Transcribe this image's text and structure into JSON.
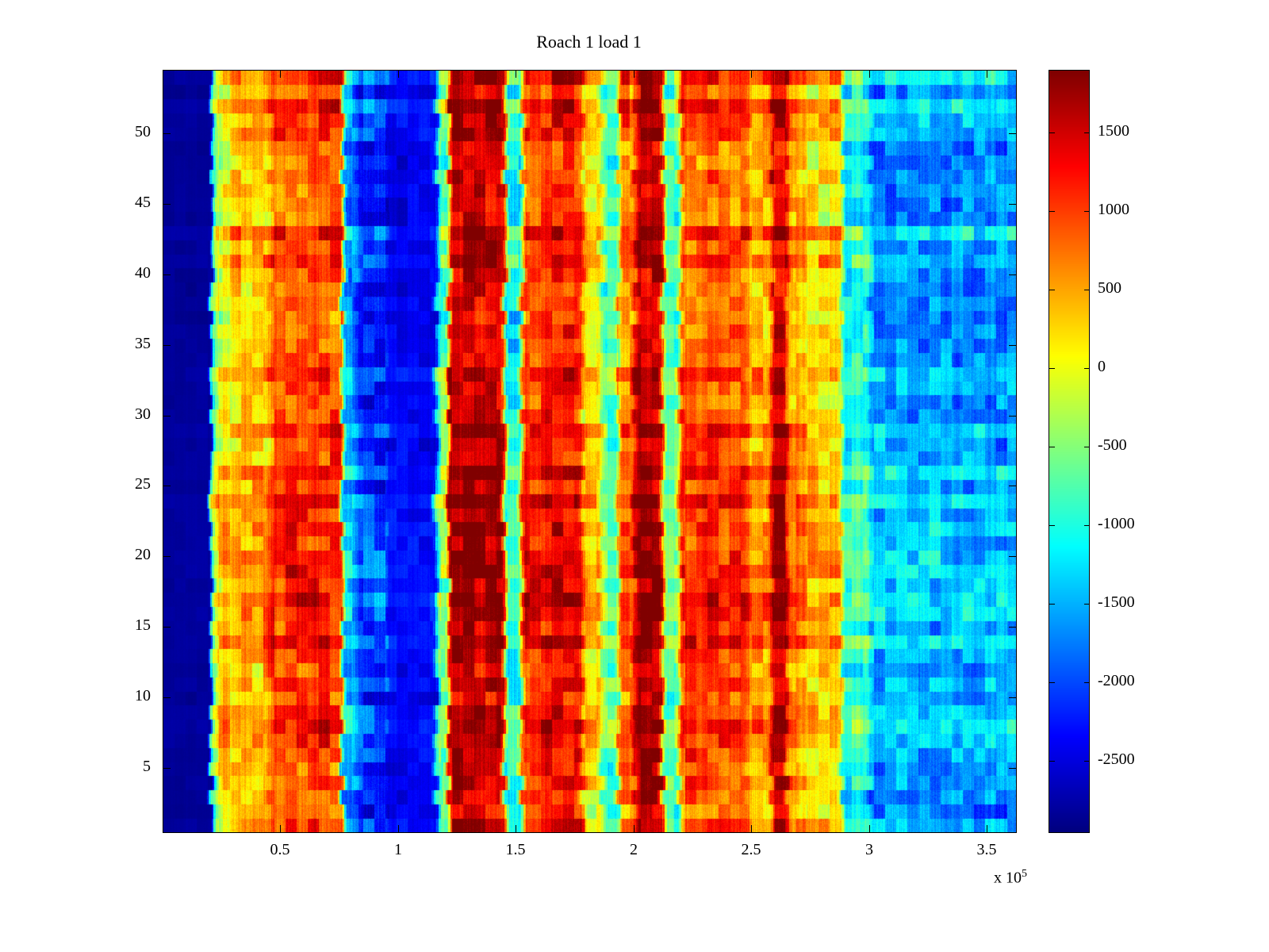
{
  "figure": {
    "background": "#ffffff",
    "axis_color": "#000000"
  },
  "chart_data": {
    "type": "heatmap",
    "title": "Roach 1 load 1",
    "xlabel": "",
    "ylabel": "",
    "xlim": [
      0,
      362000
    ],
    "ylim": [
      0.5,
      54.5
    ],
    "x_ticks": [
      50000,
      100000,
      150000,
      200000,
      250000,
      300000,
      350000
    ],
    "x_tick_labels": [
      "0.5",
      "1",
      "1.5",
      "2",
      "2.5",
      "3",
      "3.5"
    ],
    "x_multiplier_base": "x 10",
    "x_multiplier_exp": "5",
    "y_ticks": [
      5,
      10,
      15,
      20,
      25,
      30,
      35,
      40,
      45,
      50
    ],
    "n_rows": 54,
    "colorbar": {
      "colormap": "jet",
      "clim": [
        -2950,
        1900
      ],
      "ticks": [
        1500,
        1000,
        500,
        0,
        -500,
        -1000,
        -1500,
        -2000,
        -2500
      ]
    },
    "bands": [
      [
        0,
        20500,
        -2820
      ],
      [
        20500,
        23500,
        -300
      ],
      [
        23500,
        30000,
        300
      ],
      [
        30000,
        45000,
        520
      ],
      [
        45000,
        76000,
        1050
      ],
      [
        76000,
        82000,
        -1500
      ],
      [
        82000,
        95000,
        -2050
      ],
      [
        95000,
        116000,
        -2350
      ],
      [
        116000,
        121000,
        -600
      ],
      [
        121000,
        145000,
        1680
      ],
      [
        145000,
        152000,
        -950
      ],
      [
        152000,
        163000,
        1150
      ],
      [
        163000,
        178000,
        1350
      ],
      [
        178000,
        186000,
        250
      ],
      [
        186000,
        193000,
        -650
      ],
      [
        193000,
        200000,
        850
      ],
      [
        200000,
        212000,
        1720
      ],
      [
        212000,
        219000,
        -550
      ],
      [
        219000,
        248000,
        1000
      ],
      [
        248000,
        258000,
        550
      ],
      [
        258000,
        265000,
        1620
      ],
      [
        265000,
        272000,
        700
      ],
      [
        272000,
        288000,
        350
      ],
      [
        288000,
        300000,
        -900
      ],
      [
        300000,
        362000,
        -1500
      ]
    ],
    "noise": {
      "row_amp": 350,
      "patch_amp": 650,
      "medium_amp": 400,
      "stripe_amp": 300,
      "pixel_amp": 260
    }
  }
}
